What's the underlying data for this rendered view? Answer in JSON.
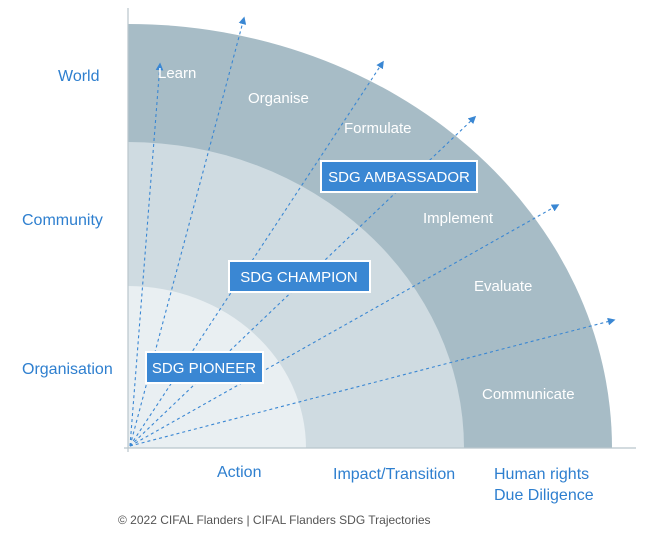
{
  "colors": {
    "accent": "#2e7fcf",
    "outer_band": "#a7bcc6",
    "middle_band": "#cfdbe1",
    "inner_band": "#e9eff2",
    "badge": "#3a87d3",
    "arrow": "#3a87d3"
  },
  "y_levels": [
    "World",
    "Community",
    "Organisation"
  ],
  "x_levels": [
    "Action",
    "Impact/Transition",
    "Human rights",
    "Due Diligence"
  ],
  "steps": [
    "Learn",
    "Organise",
    "Formulate",
    "Implement",
    "Evaluate",
    "Communicate"
  ],
  "badges": {
    "pioneer": "SDG PIONEER",
    "champion": "SDG CHAMPION",
    "ambassador": "SDG AMBASSADOR"
  },
  "footer": "© 2022 CIFAL Flanders | CIFAL Flanders SDG Trajectories",
  "icons": {
    "arrows": "dashed-arrow-icon"
  }
}
